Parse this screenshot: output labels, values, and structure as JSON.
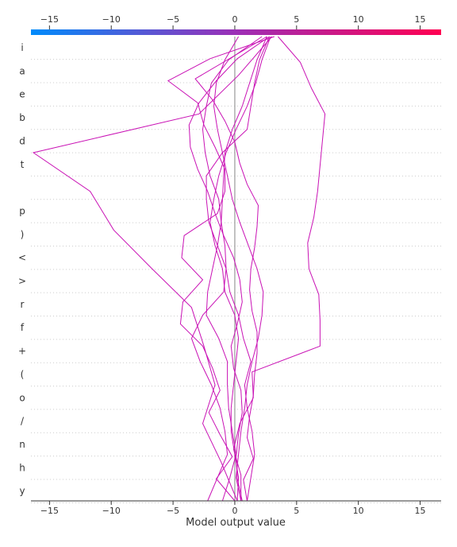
{
  "chart_data": {
    "type": "line",
    "title": "",
    "xlabel": "Model output value",
    "ylabel": "",
    "xlim": [
      -16.5,
      16.7
    ],
    "xticks": [
      -15,
      -10,
      -5,
      0,
      5,
      10,
      15
    ],
    "xtick_labels": [
      "−15",
      "−10",
      "−5",
      "0",
      "5",
      "10",
      "15"
    ],
    "colorbar": {
      "low_color": "#008bfb",
      "mid_color": "#9c2fb6",
      "high_color": "#ff0052"
    },
    "base_value": 0,
    "features": [
      "i",
      "a",
      "e",
      "b",
      "d",
      "t",
      "",
      "p",
      ")",
      "<",
      ">",
      "r",
      "f",
      "+",
      "(",
      "o",
      "/",
      "n",
      "h",
      "y"
    ],
    "line_color": "#c912b5",
    "grid": true,
    "series": [
      {
        "values": [
          -2.2,
          -1.4,
          -0.6,
          -0.8,
          -1.2,
          -1.9,
          -2.8,
          -3.5,
          -2.6,
          -0.9,
          -0.7,
          -1.4,
          -2.1,
          -2.3,
          -2.3,
          -1.0,
          1.0,
          1.3,
          1.6,
          2.0,
          2.8
        ]
      },
      {
        "values": [
          -1.0,
          -0.4,
          0.1,
          -0.2,
          -0.5,
          -0.6,
          -0.6,
          -1.3,
          -2.3,
          -2.2,
          -1.8,
          -1.4,
          -1.1,
          -1.0,
          -0.9,
          -0.8,
          -0.2,
          0.6,
          1.2,
          1.8,
          2.6
        ]
      },
      {
        "values": [
          0.2,
          0.3,
          0.0,
          -0.3,
          -0.3,
          -0.1,
          0.1,
          0.3,
          0.0,
          -0.8,
          -1.0,
          -1.6,
          -2.0,
          -1.7,
          -1.3,
          -0.7,
          0.1,
          1.0,
          1.7,
          2.2,
          2.9
        ]
      },
      {
        "values": [
          0.5,
          0.1,
          0.3,
          0.5,
          0.8,
          1.0,
          1.4,
          1.9,
          2.2,
          2.3,
          1.8,
          1.1,
          0.4,
          -0.2,
          -0.6,
          -1.0,
          -1.4,
          -1.7,
          -1.5,
          -0.8,
          0.3
        ]
      },
      {
        "values": [
          1.0,
          0.7,
          1.5,
          1.0,
          1.2,
          1.5,
          1.6,
          1.8,
          1.8,
          1.4,
          1.2,
          1.3,
          1.6,
          1.8,
          1.9,
          1.0,
          0.4,
          0.0,
          -0.8,
          -1.8,
          -3.2,
          -0.3,
          2.6
        ]
      },
      {
        "values": [
          0.0,
          -1.5,
          -0.2,
          -1.2,
          -2.1,
          -1.2,
          -1.8,
          -2.6,
          -4.4,
          -4.2,
          -2.6,
          -4.3,
          -4.1,
          -1.4,
          -0.8,
          -0.8,
          -1.6,
          -2.5,
          -3.0,
          -5.4,
          -2.0,
          3.2
        ]
      },
      {
        "values": [
          0.2,
          -1.1,
          -2.6,
          -1.6,
          -2.5,
          -3.5,
          -6.7,
          -9.8,
          -11.7,
          -16.3,
          -2.9,
          0.3,
          3.0
        ]
      },
      {
        "values": [
          1.0,
          1.3,
          1.6,
          1.4,
          1.0,
          0.8,
          1.3,
          0.7,
          0.3,
          -0.4,
          -0.7,
          -0.8,
          -1.1,
          -1.3,
          -2.0,
          -2.4,
          -2.6,
          -2.3,
          -1.9,
          -0.5,
          2.2
        ]
      },
      {
        "values": [
          0.6,
          0.2,
          0.1,
          0.3,
          0.6,
          0.5,
          -0.1,
          -0.3,
          0.2,
          0.6,
          0.4,
          -0.1,
          -0.9,
          -1.6,
          -2.2,
          -3.0,
          -3.6,
          -3.7,
          -2.9,
          -1.5,
          0.2,
          2.8
        ]
      },
      {
        "values": [
          0.5,
          0.5,
          -0.1,
          0.4,
          1.5,
          1.4,
          6.9,
          6.9,
          6.8,
          6.0,
          5.9,
          6.4,
          6.7,
          6.9,
          7.1,
          7.3,
          6.2,
          5.3,
          3.5
        ]
      }
    ]
  }
}
